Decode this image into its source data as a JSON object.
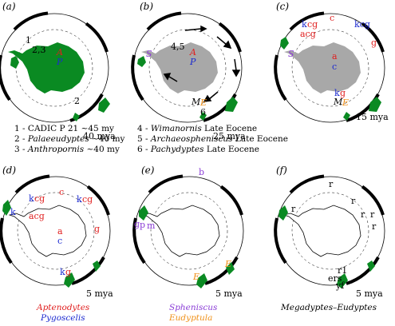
{
  "colors": {
    "red": "#e01e1e",
    "blue": "#1c2ad0",
    "purple": "#8a3cd6",
    "orange": "#f09018",
    "green": "#0a8a22",
    "gray": "#a8a8a8",
    "black": "#000000"
  },
  "panels": [
    {
      "letter": "(a)",
      "age": "40 mya"
    },
    {
      "letter": "(b)",
      "age": "25 mya"
    },
    {
      "letter": "(c)",
      "age": "15 mya"
    },
    {
      "letter": "(d)",
      "age": "5 mya"
    },
    {
      "letter": "(e)",
      "age": "5 mya"
    },
    {
      "letter": "(f)",
      "age": "5 mya"
    }
  ],
  "map_labels": {
    "a_sites": "2,3",
    "a_site1": "1",
    "a_site2": "2",
    "a_A": "A",
    "a_P": "P",
    "b_sites": "4,5",
    "b_A": "A",
    "b_P": "P",
    "b_S": "S",
    "b_M": "M",
    "b_E": "E",
    "b_6": "6",
    "c_k1": "k",
    "c_cg1": "cg",
    "c_acg": "acg",
    "c_c": "c",
    "c_kcg": "kcg",
    "c_g": "g",
    "c_a": "a",
    "c_c2": "c",
    "c_k2": "k",
    "c_g2": "g",
    "c_S": "S",
    "c_M": "M",
    "c_E": "E",
    "d_k": "k",
    "d_k1": "k",
    "d_cg1": "cg",
    "d_c": "c",
    "d_k2": "k",
    "d_cg2": "cg",
    "d_acg": "acg",
    "d_g": "g",
    "d_a": "a",
    "d_c2": "c",
    "d_k3": "k",
    "d_g2": "g",
    "e_b": "b",
    "e_g": "g",
    "e_p": "p",
    "e_m": "m",
    "e_E1": "E",
    "e_E2": "E",
    "f_r1": "r",
    "f_r2": "r",
    "f_r3": "r",
    "f_r4": "r",
    "f_r5": "r",
    "f_r6": "r",
    "f_r7": "r1",
    "f_ers": "ers",
    "f_yf": "yf"
  },
  "legend": [
    {
      "num": "1 - ",
      "name": "CADIC P 21",
      "age": " ~45 my"
    },
    {
      "num": "2 - ",
      "name": "Palaeeudyptes",
      "age": " ~40 my"
    },
    {
      "num": "3 - ",
      "name": "Anthropornis",
      "age": " ~40 my"
    },
    {
      "num": "4 - ",
      "name": "Wimanornis",
      "age": " Late Eocene"
    },
    {
      "num": "5 - ",
      "name": "Archaeospheniscus",
      "age": " Late Eocene"
    },
    {
      "num": "6 - ",
      "name": "Pachydyptes",
      "age": " Late Eocene"
    }
  ],
  "footer": {
    "d_line1": "Aptenodytes",
    "d_line2": "Pygoscelis",
    "e_line1": "Spheniscus",
    "e_line2": "Eudyptula",
    "f_line1": "Megadyptes–Eudyptes"
  }
}
